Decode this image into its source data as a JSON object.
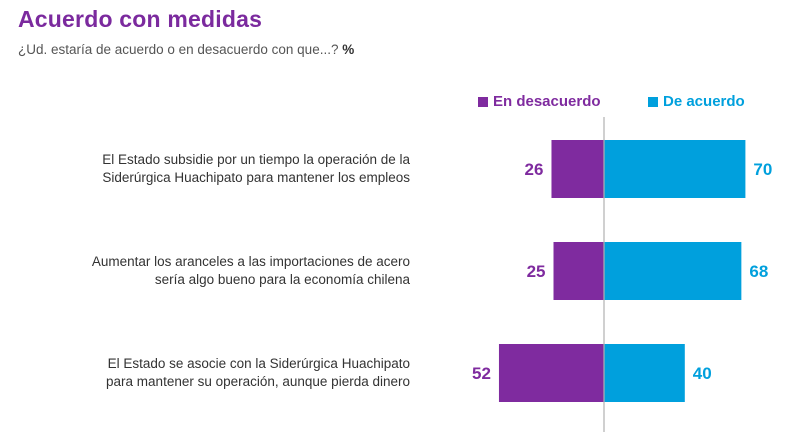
{
  "header": {
    "title": "Acuerdo con medidas",
    "subtitle": "¿Ud. estaría de acuerdo o en desacuerdo con que...?",
    "unit": "%"
  },
  "colors": {
    "title": "#7b2a9e",
    "desacuerdo": "#7f2b9f",
    "acuerdo": "#00a0dd",
    "axis": "#b0b0b0"
  },
  "chart_data": {
    "type": "bar",
    "orientation": "horizontal-diverging",
    "title": "Acuerdo con medidas",
    "subtitle": "¿Ud. estaría de acuerdo o en desacuerdo con que...? %",
    "categories": [
      "El Estado subsidie por un tiempo la operación de la Siderúrgica Huachipato para mantener los empleos",
      "Aumentar los aranceles a las importaciones de acero sería algo bueno para la economía chilena",
      "El Estado se asocie con la Siderúrgica Huachipato para mantener su operación, aunque pierda dinero"
    ],
    "category_lines": [
      [
        "El Estado subsidie por un tiempo la operación de la",
        "Siderúrgica Huachipato para mantener los empleos"
      ],
      [
        "Aumentar los aranceles a las importaciones de acero",
        "sería algo bueno para la economía chilena"
      ],
      [
        "El Estado se asocie con la Siderúrgica Huachipato",
        "para mantener su operación, aunque pierda dinero"
      ]
    ],
    "series": [
      {
        "name": "En desacuerdo",
        "values": [
          26,
          25,
          52
        ],
        "direction": "left"
      },
      {
        "name": "De acuerdo",
        "values": [
          70,
          68,
          40
        ],
        "direction": "right"
      }
    ],
    "xlabel": "",
    "ylabel": "",
    "legend": "top-right",
    "grid": false
  }
}
